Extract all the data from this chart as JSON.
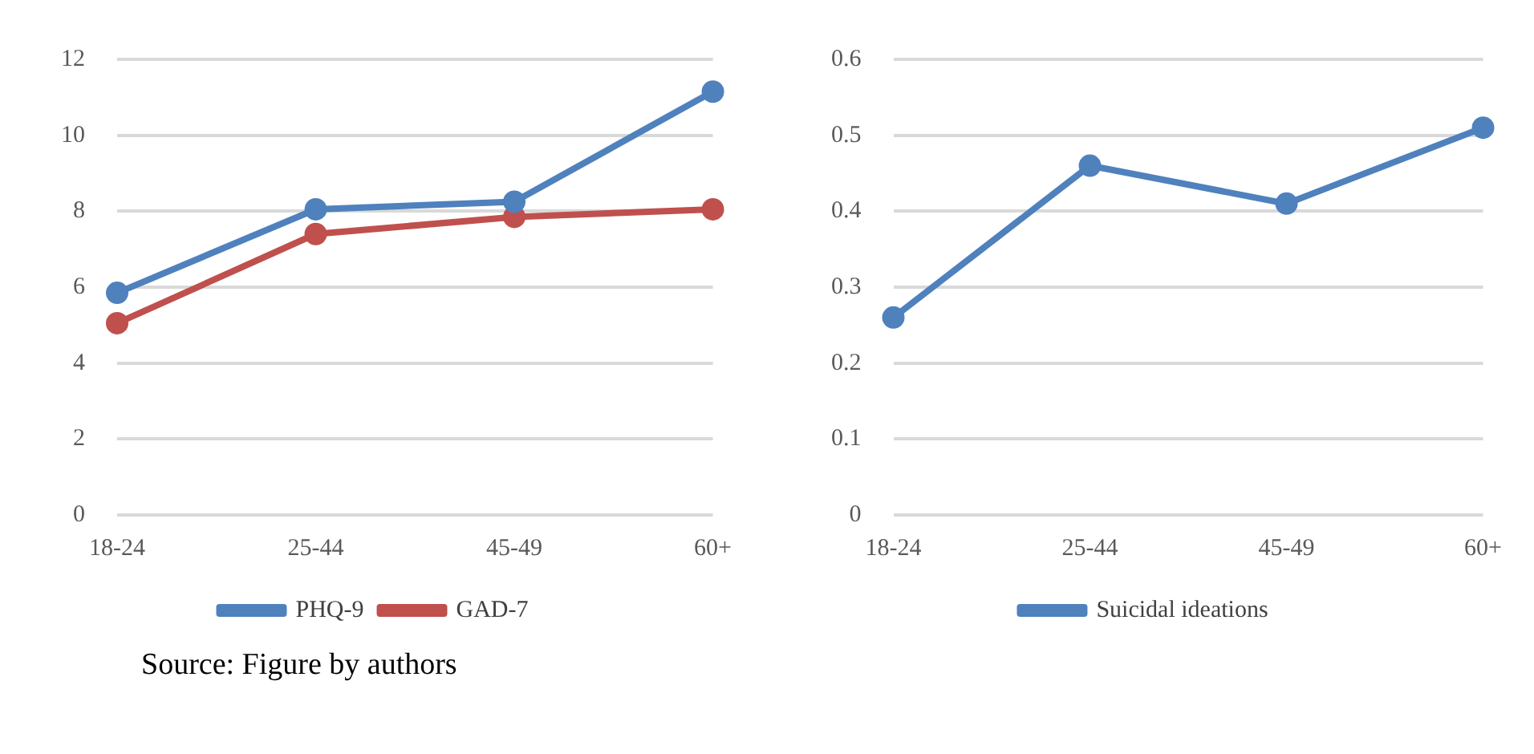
{
  "chart_data": [
    {
      "type": "line",
      "categories": [
        "18-24",
        "25-44",
        "45-49",
        "60+"
      ],
      "series": [
        {
          "name": "PHQ-9",
          "color": "#4f81bd",
          "values": [
            5.85,
            8.05,
            8.25,
            11.15
          ]
        },
        {
          "name": "GAD-7",
          "color": "#c0504d",
          "values": [
            5.05,
            7.4,
            7.85,
            8.05
          ]
        }
      ],
      "ylim": [
        0,
        12
      ],
      "yticks": [
        0,
        2,
        4,
        6,
        8,
        10,
        12
      ],
      "grid": "y",
      "legend": "bottom",
      "marker": "circle",
      "line_style": "solid",
      "annotations": [
        "Source: Figure by authors"
      ]
    },
    {
      "type": "line",
      "categories": [
        "18-24",
        "25-44",
        "45-49",
        "60+"
      ],
      "series": [
        {
          "name": "Suicidal ideations",
          "color": "#4f81bd",
          "values": [
            0.26,
            0.46,
            0.41,
            0.51
          ]
        }
      ],
      "ylim": [
        0,
        0.6
      ],
      "yticks": [
        0,
        0.1,
        0.2,
        0.3,
        0.4,
        0.5,
        0.6
      ],
      "grid": "y",
      "legend": "bottom",
      "marker": "circle",
      "line_style": "solid"
    }
  ]
}
